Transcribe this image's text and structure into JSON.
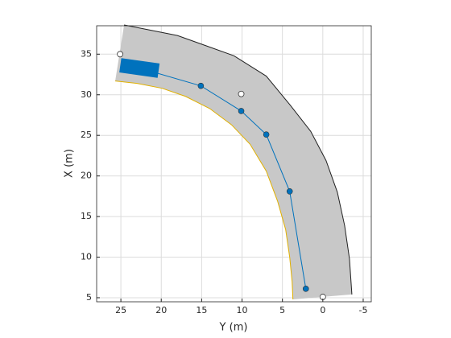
{
  "chart_data": {
    "type": "line",
    "xlabel": "Y (m)",
    "ylabel": "X (m)",
    "xlim": [
      28,
      -6
    ],
    "ylim": [
      4.5,
      38.5
    ],
    "xticks": [
      25,
      20,
      15,
      10,
      5,
      0,
      -5
    ],
    "yticks": [
      5,
      10,
      15,
      20,
      25,
      30,
      35
    ],
    "grid": true,
    "road": {
      "color": "#c8c8c8",
      "outer": {
        "x": [
          24.6,
          18,
          11,
          7,
          4.1,
          1.5,
          -0.4,
          -1.8,
          -2.7,
          -3.3,
          -3.6
        ],
        "y": [
          38.6,
          37.3,
          34.8,
          32.3,
          28.8,
          25.5,
          21.9,
          18,
          13.9,
          9.8,
          5.4
        ]
      },
      "inner": {
        "x": [
          25.7,
          23,
          19.9,
          17,
          14,
          11.3,
          9,
          7,
          5.6,
          4.6,
          4.1,
          3.8,
          3.7
        ],
        "y": [
          31.7,
          31.4,
          30.8,
          29.8,
          28.3,
          26.3,
          23.9,
          20.6,
          16.9,
          13.4,
          10,
          7,
          4.8
        ]
      }
    },
    "series": [
      {
        "color": "#0072bd",
        "x": [
          22.7,
          15.1,
          10.1,
          7.0,
          4.1,
          2.1
        ],
        "y": [
          33.3,
          31.1,
          28.0,
          25.1,
          18.1,
          6.1
        ]
      }
    ],
    "markers": {
      "x": [
        25.1,
        10.1,
        0
      ],
      "y": [
        35.0,
        30.1,
        5.1
      ]
    },
    "vehicle": {
      "x": 22.7,
      "y": 33.3,
      "color": "#0072bd"
    }
  }
}
